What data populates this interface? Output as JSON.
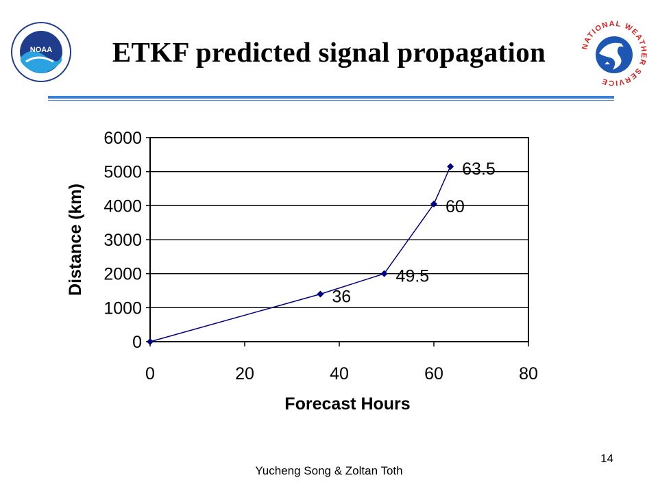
{
  "slide": {
    "title": "ETKF predicted signal propagation",
    "footer": "Yucheng Song & Zoltan Toth",
    "page_number": "14",
    "rule_color": "#3a7fd5"
  },
  "logos": {
    "left": {
      "icon": "noaa-logo-icon",
      "text": "NOAA"
    },
    "right": {
      "icon": "national-weather-service-logo-icon",
      "text": "NATIONAL WEATHER SERVICE"
    }
  },
  "chart_data": {
    "type": "line",
    "x": [
      0,
      36,
      49.5,
      60,
      63.5
    ],
    "series": [
      {
        "values": [
          0,
          1400,
          2000,
          4050,
          5150
        ],
        "color": "#000080"
      }
    ],
    "point_labels": [
      "",
      "36",
      "49.5",
      "60",
      "63.5"
    ],
    "xlabel": "Forecast Hours",
    "ylabel": "Distance (km)",
    "xlim": [
      0,
      80
    ],
    "ylim": [
      0,
      6000
    ],
    "xticks": [
      0,
      20,
      40,
      60,
      80
    ],
    "yticks": [
      0,
      1000,
      2000,
      3000,
      4000,
      5000,
      6000
    ],
    "grid": "horizontal"
  }
}
